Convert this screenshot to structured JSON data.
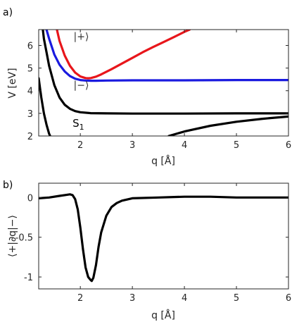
{
  "chart_data": [
    {
      "panel": "a)",
      "type": "line",
      "xlabel": "q [Å]",
      "ylabel": "V [eV]",
      "xlim": [
        1.2,
        6
      ],
      "ylim": [
        2,
        6.7
      ],
      "xticks": [
        "2",
        "3",
        "4",
        "5",
        "6"
      ],
      "yticks": [
        "2",
        "3",
        "4",
        "5",
        "6"
      ],
      "grid": false,
      "annotations": [
        {
          "text": "|+⟩",
          "x": 1.87,
          "y": 6.25
        },
        {
          "text": "|−⟩",
          "x": 1.87,
          "y": 4.1
        },
        {
          "text": "S",
          "sub": "1",
          "x": 1.85,
          "y": 2.4
        }
      ],
      "series": [
        {
          "color": "#e8161b",
          "x": [
            1.55,
            1.6,
            1.7,
            1.8,
            1.9,
            2.0,
            2.1,
            2.15,
            2.2,
            2.3,
            2.4,
            2.6,
            2.8,
            3.0,
            3.2,
            3.4,
            3.6,
            3.8,
            4.0,
            4.1
          ],
          "y": [
            6.7,
            6.2,
            5.55,
            5.1,
            4.8,
            4.63,
            4.56,
            4.55,
            4.56,
            4.62,
            4.72,
            4.95,
            5.2,
            5.45,
            5.7,
            5.93,
            6.15,
            6.37,
            6.6,
            6.7
          ]
        },
        {
          "color": "#1a1adf",
          "x": [
            1.35,
            1.4,
            1.5,
            1.6,
            1.7,
            1.8,
            1.9,
            2.0,
            2.1,
            2.2,
            2.3,
            2.5,
            3.0,
            4.0,
            5.0,
            6.0
          ],
          "y": [
            6.7,
            6.3,
            5.6,
            5.15,
            4.85,
            4.65,
            4.53,
            4.47,
            4.45,
            4.44,
            4.44,
            4.45,
            4.46,
            4.46,
            4.47,
            4.47
          ]
        },
        {
          "color": "#000000",
          "x": [
            1.28,
            1.3,
            1.35,
            1.4,
            1.5,
            1.6,
            1.7,
            1.8,
            1.9,
            2.0,
            2.2,
            2.5,
            3.0,
            4.0,
            5.0,
            6.0
          ],
          "y": [
            6.7,
            6.3,
            5.7,
            5.1,
            4.25,
            3.7,
            3.38,
            3.2,
            3.1,
            3.05,
            3.01,
            3.0,
            2.99,
            2.99,
            3.0,
            3.0
          ]
        },
        {
          "color": "#000000",
          "x": [
            1.2,
            1.22,
            1.25,
            1.3,
            1.35,
            1.4,
            1.42
          ],
          "y": [
            4.55,
            4.2,
            3.7,
            3.0,
            2.5,
            2.1,
            2.0
          ]
        },
        {
          "color": "#000000",
          "x": [
            3.7,
            4.0,
            4.5,
            5.0,
            5.5,
            6.0
          ],
          "y": [
            2.0,
            2.2,
            2.45,
            2.63,
            2.76,
            2.86
          ]
        }
      ]
    },
    {
      "panel": "b)",
      "type": "line",
      "xlabel": "q [Å]",
      "ylabel": "⟨+|∂q|−⟩",
      "xlim": [
        1.2,
        6
      ],
      "ylim": [
        -1.15,
        0.18
      ],
      "xticks": [
        "2",
        "3",
        "4",
        "5",
        "6"
      ],
      "yticks": [
        "0",
        "-0.5",
        "-1"
      ],
      "grid": false,
      "series": [
        {
          "color": "#000000",
          "x": [
            1.2,
            1.4,
            1.6,
            1.7,
            1.8,
            1.85,
            1.9,
            1.95,
            2.0,
            2.05,
            2.1,
            2.15,
            2.2,
            2.22,
            2.25,
            2.3,
            2.35,
            2.4,
            2.5,
            2.6,
            2.7,
            2.8,
            3.0,
            3.5,
            4.0,
            4.5,
            5.0,
            5.5,
            6.0
          ],
          "y": [
            -0.01,
            0.0,
            0.02,
            0.03,
            0.04,
            0.03,
            -0.02,
            -0.15,
            -0.38,
            -0.65,
            -0.88,
            -1.0,
            -1.04,
            -1.05,
            -1.01,
            -0.85,
            -0.62,
            -0.44,
            -0.23,
            -0.12,
            -0.07,
            -0.04,
            -0.01,
            0.0,
            0.01,
            0.01,
            0.0,
            0.0,
            0.0
          ]
        }
      ]
    }
  ]
}
